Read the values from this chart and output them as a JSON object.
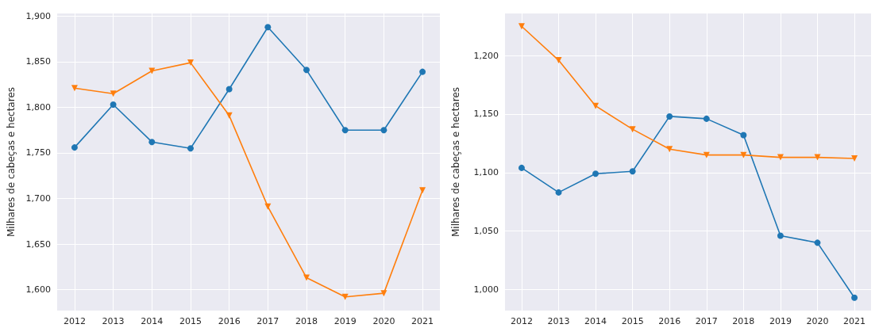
{
  "chart_data": [
    {
      "type": "line",
      "ylabel": "Milhares de cabeças e hectares",
      "categories": [
        "2012",
        "2013",
        "2014",
        "2015",
        "2016",
        "2017",
        "2018",
        "2019",
        "2020",
        "2021"
      ],
      "series": [
        {
          "color": "#1f77b4",
          "marker": "circle",
          "values": [
            1756,
            1803,
            1762,
            1755,
            1820,
            1888,
            1841,
            1775,
            1775,
            1839
          ]
        },
        {
          "color": "#ff7f0e",
          "marker": "triangle",
          "values": [
            1821,
            1815,
            1840,
            1849,
            1791,
            1691,
            1613,
            1592,
            1596,
            1709
          ]
        }
      ],
      "ylim": [
        1577,
        1903
      ],
      "yticks": [
        {
          "value": 1600,
          "label": "1,600"
        },
        {
          "value": 1650,
          "label": "1,650"
        },
        {
          "value": 1700,
          "label": "1,700"
        },
        {
          "value": 1750,
          "label": "1,750"
        },
        {
          "value": 1800,
          "label": "1,800"
        },
        {
          "value": 1850,
          "label": "1,850"
        },
        {
          "value": 1900,
          "label": "1,900"
        }
      ],
      "grid": true
    },
    {
      "type": "line",
      "ylabel": "Milhares de cabeças e hectares",
      "categories": [
        "2012",
        "2013",
        "2014",
        "2015",
        "2016",
        "2017",
        "2018",
        "2019",
        "2020",
        "2021"
      ],
      "series": [
        {
          "color": "#1f77b4",
          "marker": "circle",
          "values": [
            1104,
            1083,
            1099,
            1101,
            1148,
            1146,
            1132,
            1046,
            1040,
            993
          ]
        },
        {
          "color": "#ff7f0e",
          "marker": "triangle",
          "values": [
            1225,
            1196,
            1157,
            1137,
            1120,
            1115,
            1115,
            1113,
            1113,
            1112
          ]
        }
      ],
      "ylim": [
        982,
        1236
      ],
      "yticks": [
        {
          "value": 1000,
          "label": "1,000"
        },
        {
          "value": 1050,
          "label": "1,050"
        },
        {
          "value": 1100,
          "label": "1,100"
        },
        {
          "value": 1150,
          "label": "1,150"
        },
        {
          "value": 1200,
          "label": "1,200"
        }
      ],
      "grid": true
    }
  ]
}
